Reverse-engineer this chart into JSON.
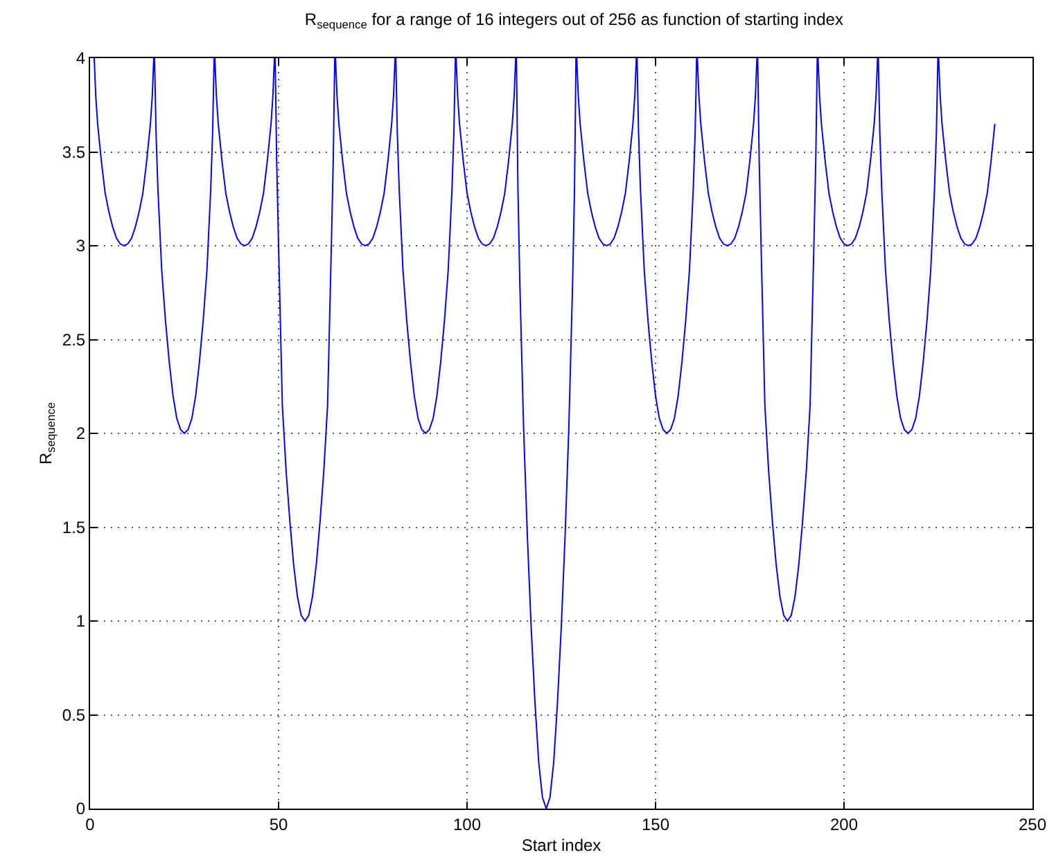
{
  "chart_data": {
    "type": "line",
    "title": "R$_{sequence}$ for a range of 16 integers out of 256 as function of starting index",
    "xlabel": "Start index",
    "ylabel": "R$_{sequence}$",
    "series": [
      {
        "color": "#0000ff",
        "x": [
          1.1,
          1.5,
          2,
          3,
          4,
          5,
          6,
          7,
          8,
          9,
          10,
          11,
          12,
          13,
          14,
          15,
          16,
          16.5,
          16.9,
          17.1,
          17.5,
          18,
          19,
          20,
          21,
          22,
          23,
          24,
          25,
          26,
          27,
          28,
          29,
          30,
          31,
          32,
          32.5,
          32.9,
          33.1,
          33.5,
          34,
          35,
          36,
          37,
          38,
          39,
          40,
          41,
          42,
          43,
          44,
          45,
          46,
          47,
          48,
          48.5,
          48.9,
          49.1,
          49.5,
          50,
          51,
          52,
          53,
          54,
          55,
          56,
          57,
          58,
          59,
          60,
          61,
          62,
          63,
          64,
          64.5,
          64.9,
          65.1,
          65.5,
          66,
          67,
          68,
          69,
          70,
          71,
          72,
          73,
          74,
          75,
          76,
          77,
          78,
          79,
          80,
          80.5,
          80.9,
          81.1,
          81.5,
          82,
          83,
          84,
          85,
          86,
          87,
          88,
          89,
          90,
          91,
          92,
          93,
          94,
          95,
          96,
          96.5,
          96.9,
          97.1,
          97.5,
          98,
          99,
          100,
          101,
          102,
          103,
          104,
          105,
          106,
          107,
          108,
          109,
          110,
          111,
          112,
          112.5,
          112.9,
          113.1,
          113.5,
          114,
          115,
          116,
          117,
          118,
          119,
          120,
          121,
          122,
          123,
          124,
          125,
          126,
          127,
          128,
          128.5,
          128.9,
          129.1,
          129.5,
          130,
          131,
          132,
          133,
          134,
          135,
          136,
          137,
          138,
          139,
          140,
          141,
          142,
          143,
          144,
          144.5,
          144.9,
          145.1,
          145.5,
          146,
          147,
          148,
          149,
          150,
          151,
          152,
          153,
          154,
          155,
          156,
          157,
          158,
          159,
          160,
          160.5,
          160.9,
          161.1,
          161.5,
          162,
          163,
          164,
          165,
          166,
          167,
          168,
          169,
          170,
          171,
          172,
          173,
          174,
          175,
          176,
          176.5,
          176.9,
          177.1,
          177.5,
          178,
          179,
          180,
          181,
          182,
          183,
          184,
          185,
          186,
          187,
          188,
          189,
          190,
          191,
          192,
          192.5,
          192.9,
          193.1,
          193.5,
          194,
          195,
          196,
          197,
          198,
          199,
          200,
          201,
          202,
          203,
          204,
          205,
          206,
          207,
          208,
          208.5,
          208.9,
          209.1,
          209.5,
          210,
          211,
          212,
          213,
          214,
          215,
          216,
          217,
          218,
          219,
          220,
          221,
          222,
          223,
          224,
          224.5,
          224.9,
          225.1,
          225.5,
          226,
          227,
          228,
          229,
          230,
          231,
          232,
          233,
          234,
          235,
          236,
          237,
          238,
          239,
          240
        ],
        "values": [
          4,
          3.8,
          3.65,
          3.45,
          3.28,
          3.18,
          3.1,
          3.04,
          3.01,
          3,
          3.01,
          3.04,
          3.1,
          3.18,
          3.28,
          3.45,
          3.65,
          3.8,
          4,
          4,
          3.6,
          3.3,
          2.87,
          2.6,
          2.38,
          2.2,
          2.08,
          2.02,
          2,
          2.02,
          2.08,
          2.2,
          2.38,
          2.6,
          2.87,
          3.3,
          3.6,
          4,
          4,
          3.8,
          3.65,
          3.45,
          3.28,
          3.18,
          3.1,
          3.04,
          3.01,
          3,
          3.01,
          3.04,
          3.1,
          3.18,
          3.28,
          3.45,
          3.65,
          3.8,
          4,
          4,
          3.45,
          3,
          2.15,
          1.8,
          1.53,
          1.3,
          1.13,
          1.03,
          1,
          1.03,
          1.13,
          1.3,
          1.53,
          1.8,
          2.15,
          3,
          3.45,
          4,
          4,
          3.8,
          3.65,
          3.45,
          3.28,
          3.18,
          3.1,
          3.04,
          3.01,
          3,
          3.01,
          3.04,
          3.1,
          3.18,
          3.28,
          3.45,
          3.65,
          3.8,
          4,
          4,
          3.6,
          3.3,
          2.87,
          2.6,
          2.38,
          2.2,
          2.08,
          2.02,
          2,
          2.02,
          2.08,
          2.2,
          2.38,
          2.6,
          2.87,
          3.3,
          3.6,
          4,
          4,
          3.8,
          3.65,
          3.45,
          3.28,
          3.18,
          3.1,
          3.04,
          3.01,
          3,
          3.01,
          3.04,
          3.1,
          3.18,
          3.28,
          3.45,
          3.65,
          3.8,
          4,
          4,
          3.3,
          2.8,
          2.03,
          1.45,
          0.97,
          0.57,
          0.25,
          0.06,
          0,
          0.06,
          0.25,
          0.57,
          0.97,
          1.45,
          2.03,
          2.8,
          3.3,
          4,
          4,
          3.8,
          3.65,
          3.45,
          3.28,
          3.18,
          3.1,
          3.04,
          3.01,
          3,
          3.01,
          3.04,
          3.1,
          3.18,
          3.28,
          3.45,
          3.65,
          3.8,
          4,
          4,
          3.6,
          3.3,
          2.87,
          2.6,
          2.38,
          2.2,
          2.08,
          2.02,
          2,
          2.02,
          2.08,
          2.2,
          2.38,
          2.6,
          2.87,
          3.3,
          3.6,
          4,
          4,
          3.8,
          3.65,
          3.45,
          3.28,
          3.18,
          3.1,
          3.04,
          3.01,
          3,
          3.01,
          3.04,
          3.1,
          3.18,
          3.28,
          3.45,
          3.65,
          3.8,
          4,
          4,
          3.45,
          3,
          2.15,
          1.8,
          1.53,
          1.3,
          1.13,
          1.03,
          1,
          1.03,
          1.13,
          1.3,
          1.53,
          1.8,
          2.15,
          3,
          3.45,
          4,
          4,
          3.8,
          3.65,
          3.45,
          3.28,
          3.18,
          3.1,
          3.04,
          3.01,
          3,
          3.01,
          3.04,
          3.1,
          3.18,
          3.28,
          3.45,
          3.65,
          3.8,
          4,
          4,
          3.6,
          3.3,
          2.87,
          2.6,
          2.38,
          2.2,
          2.08,
          2.02,
          2,
          2.02,
          2.08,
          2.2,
          2.38,
          2.6,
          2.87,
          3.3,
          3.6,
          4,
          4,
          3.8,
          3.65,
          3.45,
          3.28,
          3.18,
          3.1,
          3.04,
          3.01,
          3,
          3.01,
          3.04,
          3.1,
          3.18,
          3.28,
          3.45,
          3.65
        ]
      }
    ],
    "xlim": [
      0,
      250
    ],
    "xticks": [
      0,
      50,
      100,
      150,
      200,
      250
    ],
    "ylim": [
      0,
      4
    ],
    "yticks": [
      0,
      0.5,
      1,
      1.5,
      2,
      2.5,
      3,
      3.5,
      4
    ],
    "grid": true,
    "marker": "none",
    "line_style": "solid"
  }
}
